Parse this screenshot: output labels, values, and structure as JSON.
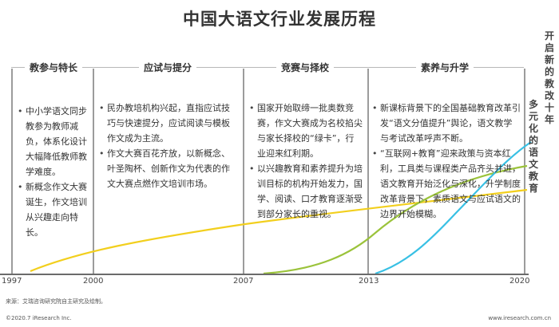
{
  "title": "中国大语文行业发展历程",
  "periods": [
    {
      "title": "教参与特长",
      "items": [
        "中小学语文同步教参为教师减负，体系化设计大幅降低教师教学难度。",
        "新概念作文大赛诞生，作文培训从兴趣走向特长。"
      ]
    },
    {
      "title": "应试与提分",
      "items": [
        "民办教培机构兴起，直指应试技巧与快速提分，应试阅读与模板作文成为主流。",
        "作文大赛百花齐放，以新概念、叶圣陶杯、创新作文为代表的作文大赛点燃作文培训市场。"
      ]
    },
    {
      "title": "竞赛与择校",
      "items": [
        "国家开始取缔一批奥数竞赛，作文大赛成为名校掐尖与家长择校的“绿卡”，行业迎来红利期。",
        "以兴趣教育和素养提升为培训目标的机构开始发力，国学、阅读、口才教育逐渐受到部分家长的重视。"
      ]
    },
    {
      "title": "素养与升学",
      "items": [
        "新课标背景下的全国基础教育改革引发“语文分值提升”舆论，语文教学与考试改革呼声不断。",
        "“互联网+教育”迎来政策与资本红利，工具类与课程类产品齐头并进，语文教育开始泛化与深化，升学制度改革背景下，素质语文与应试语文的边界开始模糊。"
      ]
    }
  ],
  "years": [
    "1997",
    "2000",
    "2007",
    "2013",
    "2020"
  ],
  "side_labels": [
    "多元化的语文教育",
    "开启新的教改十年"
  ],
  "source": "来源：艾瑞咨询研究院自主研究及绘制。",
  "footer_left": "©2020.7 iResearch Inc.",
  "footer_right": "www.iresearch.com.cn",
  "colors": {
    "yellow_line": "#f2cf1d",
    "green_line": "#9bc33b",
    "cyan_line": "#38c0e4"
  }
}
